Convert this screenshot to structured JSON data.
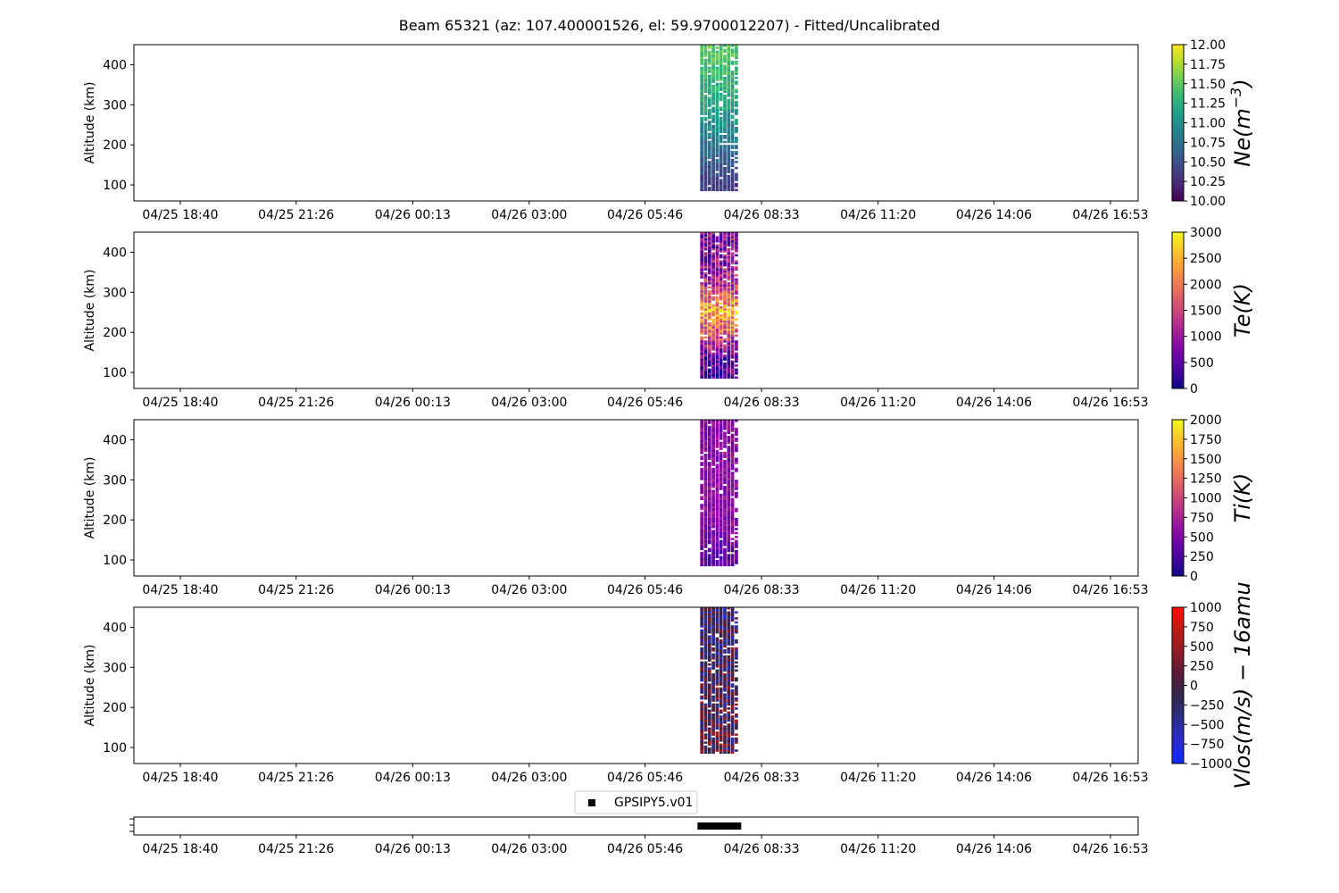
{
  "title": "Beam 65321 (az: 107.400001526, el: 59.9700012207) - Fitted/Uncalibrated",
  "x_tick_labels": [
    "04/25 18:40",
    "04/25 21:26",
    "04/26 00:13",
    "04/26 03:00",
    "04/26 05:46",
    "04/26 08:33",
    "04/26 11:20",
    "04/26 14:06",
    "04/26 16:53"
  ],
  "ylabel": "Altitude (km)",
  "y_ticks": [
    100,
    200,
    300,
    400
  ],
  "chart_data": [
    {
      "type": "heatmap",
      "name": "ne",
      "ylabel": "Altitude (km)",
      "ylim": [
        60,
        450
      ],
      "colorbar_label": "Ne(m^-3)",
      "colormap": "viridis",
      "clim": [
        10,
        12
      ],
      "colorbar_ticks": [
        "10.00",
        "10.25",
        "10.50",
        "10.75",
        "11.00",
        "11.25",
        "11.50",
        "11.75",
        "12.00"
      ],
      "data_time_span": [
        "04/26 07:05",
        "04/26 08:00"
      ],
      "data_alt_span": [
        85,
        450
      ],
      "profile": [
        [
          100,
          10.35
        ],
        [
          150,
          10.55
        ],
        [
          200,
          10.8
        ],
        [
          250,
          11.0
        ],
        [
          300,
          11.2
        ],
        [
          350,
          11.3
        ],
        [
          400,
          11.4
        ],
        [
          440,
          11.5
        ]
      ]
    },
    {
      "type": "heatmap",
      "name": "te",
      "ylabel": "Altitude (km)",
      "ylim": [
        60,
        450
      ],
      "colorbar_label": "Te(K)",
      "colormap": "plasma",
      "clim": [
        0,
        3000
      ],
      "colorbar_ticks": [
        "0",
        "500",
        "1000",
        "1500",
        "2000",
        "2500",
        "3000"
      ],
      "data_time_span": [
        "04/26 07:05",
        "04/26 08:00"
      ],
      "data_alt_span": [
        85,
        450
      ],
      "profile": [
        [
          100,
          400
        ],
        [
          150,
          700
        ],
        [
          200,
          1800
        ],
        [
          250,
          2400
        ],
        [
          300,
          1500
        ],
        [
          350,
          900
        ],
        [
          400,
          800
        ],
        [
          440,
          800
        ]
      ]
    },
    {
      "type": "heatmap",
      "name": "ti",
      "ylabel": "Altitude (km)",
      "ylim": [
        60,
        450
      ],
      "colorbar_label": "Ti(K)",
      "colormap": "plasma",
      "clim": [
        0,
        2000
      ],
      "colorbar_ticks": [
        "0",
        "250",
        "500",
        "750",
        "1000",
        "1250",
        "1500",
        "1750",
        "2000"
      ],
      "data_time_span": [
        "04/26 07:05",
        "04/26 08:00"
      ],
      "data_alt_span": [
        85,
        450
      ],
      "profile": [
        [
          100,
          350
        ],
        [
          150,
          450
        ],
        [
          200,
          550
        ],
        [
          250,
          600
        ],
        [
          300,
          560
        ],
        [
          350,
          560
        ],
        [
          400,
          560
        ],
        [
          440,
          560
        ]
      ]
    },
    {
      "type": "heatmap",
      "name": "vlos",
      "ylabel": "Altitude (km)",
      "ylim": [
        60,
        450
      ],
      "colorbar_label": "Vlos(m/s) - 16amu",
      "colormap": "bwr-dark",
      "clim": [
        -1000,
        1000
      ],
      "colorbar_ticks": [
        "−1000",
        "−750",
        "−500",
        "−250",
        "0",
        "250",
        "500",
        "750",
        "1000"
      ],
      "data_time_span": [
        "04/26 07:05",
        "04/26 08:00"
      ],
      "data_alt_span": [
        85,
        450
      ],
      "profile": [
        [
          100,
          0
        ],
        [
          200,
          0
        ],
        [
          300,
          -100
        ],
        [
          440,
          -200
        ]
      ]
    },
    {
      "type": "scatter",
      "name": "gps",
      "series": [
        {
          "name": "GPSIPY5.v01",
          "x": [
            "04/26 07:05",
            "04/26 08:00"
          ]
        }
      ],
      "legend": "top-center"
    }
  ]
}
